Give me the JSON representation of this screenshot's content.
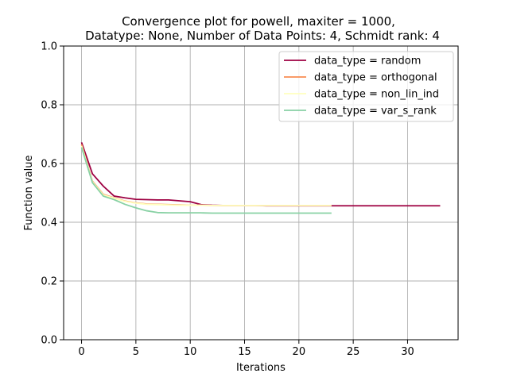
{
  "chart_data": {
    "type": "line",
    "title_line1": "Convergence plot for powell, maxiter = 1000,",
    "title_line2": "Datatype: None, Number of Data Points: 4, Schmidt rank: 4",
    "xlabel": "Iterations",
    "ylabel": "Function value",
    "xlim": [
      -1.65,
      34.65
    ],
    "ylim": [
      0.0,
      1.0
    ],
    "xticks": [
      0,
      5,
      10,
      15,
      20,
      25,
      30
    ],
    "yticks": [
      0.0,
      0.2,
      0.4,
      0.6,
      0.8,
      1.0
    ],
    "xtick_labels": [
      "0",
      "5",
      "10",
      "15",
      "20",
      "25",
      "30"
    ],
    "ytick_labels": [
      "0.0",
      "0.2",
      "0.4",
      "0.6",
      "0.8",
      "1.0"
    ],
    "grid": true,
    "legend_position": "top-right",
    "series": [
      {
        "name": "data_type = random",
        "color": "#9e0142",
        "x": [
          0,
          1,
          2,
          3,
          4,
          5,
          6,
          7,
          8,
          9,
          10,
          11,
          12,
          13,
          14,
          15,
          16,
          17,
          18,
          19,
          20,
          21,
          22,
          23,
          24,
          25,
          26,
          27,
          28,
          29,
          30,
          31,
          32,
          33
        ],
        "y": [
          0.672,
          0.565,
          0.523,
          0.489,
          0.483,
          0.478,
          0.477,
          0.476,
          0.476,
          0.473,
          0.47,
          0.46,
          0.458,
          0.457,
          0.457,
          0.457,
          0.457,
          0.456,
          0.456,
          0.456,
          0.456,
          0.456,
          0.456,
          0.456,
          0.456,
          0.456,
          0.456,
          0.456,
          0.456,
          0.456,
          0.456,
          0.456,
          0.456,
          0.456
        ]
      },
      {
        "name": "data_type = orthogonal",
        "color": "#f88d52",
        "x": [
          0,
          1,
          2,
          3,
          4,
          5,
          6,
          7,
          8,
          9,
          10,
          11,
          12,
          13,
          14,
          15,
          16,
          17,
          18,
          19,
          20,
          21,
          22,
          23
        ],
        "y": [
          0.665,
          0.54,
          0.495,
          0.483,
          0.472,
          0.466,
          0.462,
          0.461,
          0.46,
          0.459,
          0.458,
          0.458,
          0.457,
          0.457,
          0.457,
          0.457,
          0.457,
          0.457,
          0.457,
          0.457,
          0.457,
          0.457,
          0.457,
          0.457
        ]
      },
      {
        "name": "data_type = non_lin_ind",
        "color": "#ffffbe",
        "x": [
          0,
          1,
          2,
          3,
          4,
          5,
          6,
          7,
          8,
          9,
          10,
          11,
          12,
          13,
          14,
          15,
          16,
          17,
          18,
          19,
          20,
          21,
          22,
          23
        ],
        "y": [
          0.66,
          0.538,
          0.493,
          0.482,
          0.471,
          0.465,
          0.461,
          0.46,
          0.459,
          0.458,
          0.458,
          0.458,
          0.457,
          0.457,
          0.457,
          0.457,
          0.457,
          0.457,
          0.457,
          0.457,
          0.457,
          0.457,
          0.457,
          0.457
        ]
      },
      {
        "name": "data_type = var_s_rank",
        "color": "#88d1a4",
        "x": [
          0,
          1,
          2,
          3,
          4,
          5,
          6,
          7,
          8,
          9,
          10,
          11,
          12,
          13,
          14,
          15,
          16,
          17,
          18,
          19,
          20,
          21,
          22,
          23
        ],
        "y": [
          0.655,
          0.535,
          0.489,
          0.477,
          0.461,
          0.449,
          0.439,
          0.433,
          0.432,
          0.432,
          0.432,
          0.432,
          0.431,
          0.431,
          0.431,
          0.431,
          0.431,
          0.431,
          0.431,
          0.431,
          0.431,
          0.431,
          0.431,
          0.431
        ]
      }
    ]
  }
}
